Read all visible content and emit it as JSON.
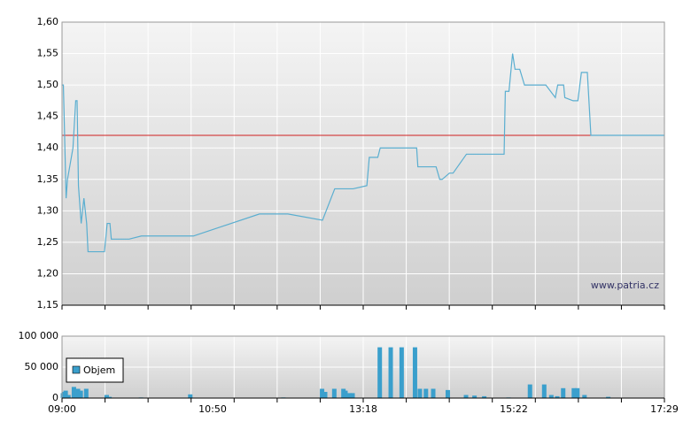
{
  "chart_data": [
    {
      "type": "line",
      "x": [
        "09:00",
        "09:01",
        "09:03",
        "09:04",
        "09:08",
        "09:10",
        "09:11",
        "09:12",
        "09:14",
        "09:16",
        "09:18",
        "09:19",
        "09:31",
        "09:33",
        "09:35",
        "09:36",
        "09:49",
        "09:58",
        "10:36",
        "11:36",
        "12:04",
        "12:38",
        "12:50",
        "13:08",
        "13:21",
        "13:23",
        "13:30",
        "13:32",
        "14:02",
        "14:03",
        "14:18",
        "14:21",
        "14:23",
        "14:29",
        "14:32",
        "14:43",
        "15:14",
        "15:15",
        "15:18",
        "15:21",
        "15:23",
        "15:27",
        "15:31",
        "15:49",
        "15:57",
        "15:59",
        "16:04",
        "16:05",
        "16:12",
        "16:16",
        "16:19",
        "16:24",
        "16:27",
        "17:29"
      ],
      "values": [
        1.5,
        1.5,
        1.32,
        1.35,
        1.4,
        1.475,
        1.475,
        1.34,
        1.28,
        1.32,
        1.28,
        1.235,
        1.235,
        1.28,
        1.28,
        1.255,
        1.255,
        1.26,
        1.26,
        1.295,
        1.295,
        1.285,
        1.335,
        1.335,
        1.34,
        1.385,
        1.385,
        1.4,
        1.4,
        1.37,
        1.37,
        1.35,
        1.35,
        1.36,
        1.36,
        1.39,
        1.39,
        1.49,
        1.49,
        1.55,
        1.525,
        1.525,
        1.5,
        1.5,
        1.48,
        1.5,
        1.5,
        1.48,
        1.475,
        1.475,
        1.52,
        1.52,
        1.42,
        1.42
      ],
      "color": "#5aaed0",
      "reference_line": 1.42,
      "reference_color": "#d02020",
      "xlim": [
        "09:00",
        "17:29"
      ],
      "ylim": [
        1.15,
        1.6
      ],
      "yticks": [
        {
          "value": 1.15,
          "label": "1,15"
        },
        {
          "value": 1.2,
          "label": "1,20"
        },
        {
          "value": 1.25,
          "label": "1,25"
        },
        {
          "value": 1.3,
          "label": "1,30"
        },
        {
          "value": 1.35,
          "label": "1,35"
        },
        {
          "value": 1.4,
          "label": "1,40"
        },
        {
          "value": 1.45,
          "label": "1,45"
        },
        {
          "value": 1.5,
          "label": "1,50"
        },
        {
          "value": 1.55,
          "label": "1,55"
        },
        {
          "value": 1.6,
          "label": "1,60"
        }
      ],
      "grid": true,
      "watermark": "www.patria.cz"
    },
    {
      "type": "bar",
      "x": [
        "09:01",
        "09:02",
        "09:03",
        "09:05",
        "09:09",
        "09:12",
        "09:14",
        "09:18",
        "09:33",
        "09:35",
        "09:58",
        "10:34",
        "12:00",
        "12:38",
        "12:41",
        "12:50",
        "12:59",
        "13:01",
        "13:05",
        "13:08",
        "13:32",
        "13:41",
        "13:50",
        "14:01",
        "14:05",
        "14:10",
        "14:16",
        "14:28",
        "14:43",
        "14:50",
        "14:58",
        "15:18",
        "15:36",
        "15:48",
        "15:54",
        "15:59",
        "16:04",
        "16:13",
        "16:16",
        "16:22",
        "16:42"
      ],
      "series": [
        {
          "name": "Objem",
          "color": "#3a9fcc",
          "values": [
            8000,
            10000,
            12000,
            5000,
            18000,
            15000,
            12000,
            15000,
            5000,
            2000,
            1000,
            6000,
            1000,
            15000,
            10000,
            15000,
            15000,
            12000,
            8000,
            8000,
            82000,
            82000,
            82000,
            82000,
            15000,
            15000,
            15000,
            13000,
            5000,
            4000,
            3000,
            1000,
            22000,
            22000,
            5000,
            3000,
            16000,
            16000,
            16000,
            5000,
            2000
          ]
        }
      ],
      "xlim": [
        "09:00",
        "17:29"
      ],
      "xticks": [
        "09:00",
        "10:50",
        "13:18",
        "15:22",
        "17:29"
      ],
      "ylim": [
        0,
        100000
      ],
      "yticks": [
        0,
        {
          "value": 50000,
          "label": "50 000"
        },
        {
          "value": 100000,
          "label": "100 000"
        }
      ],
      "grid": true,
      "legend": "upper-left"
    }
  ]
}
